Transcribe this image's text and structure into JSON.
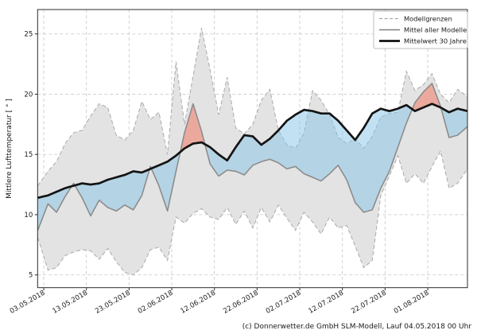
{
  "chart": {
    "y_axis_label": "Mittlere Lufttemperatur [ ° ]",
    "footer_credit": "(c) Donnerwetter.de GmbH SLM-Modell, Lauf 04.05.2018 00 Uhr",
    "legend": {
      "item1": "Modellgrenzen",
      "item2": "Mittel aller Modelle",
      "item3": "Mittelwert 30 Jahre"
    }
  },
  "chart_data": {
    "type": "line",
    "title": "",
    "xlabel": "",
    "ylabel": "Mittlere Lufttemperatur [ ° ]",
    "grid": true,
    "legend_position": "upper right",
    "x_tick_labels": [
      "03.05.2018",
      "13.05.2018",
      "23.05.2018",
      "02.06.2018",
      "12.06.2018",
      "22.06.2018",
      "02.07.2018",
      "12.07.2018",
      "22.07.2018",
      "01.08.2018"
    ],
    "x_tick_days": [
      0,
      10,
      20,
      30,
      40,
      50,
      60,
      70,
      80,
      90
    ],
    "y_ticks": [
      5,
      10,
      15,
      20,
      25
    ],
    "ylim": [
      3.95,
      27.05
    ],
    "xlim_days": [
      -1.4,
      99.3
    ],
    "days": [
      -1.4,
      1,
      3,
      5,
      7,
      9,
      11,
      13,
      15,
      17,
      19,
      21,
      23,
      25,
      27,
      29,
      31,
      33,
      35,
      37,
      39,
      41,
      43,
      45,
      47,
      49,
      51,
      53,
      55,
      57,
      59,
      61,
      63,
      65,
      67,
      69,
      71,
      73,
      75,
      77,
      79,
      81,
      83,
      85,
      87,
      89,
      91,
      93,
      95,
      97,
      99.3
    ],
    "series": [
      {
        "name": "Modellgrenzen (obere Grenze)",
        "style": "dashed-gray",
        "values": [
          12.4,
          13.6,
          14.4,
          15.9,
          16.8,
          17.0,
          18.2,
          19.2,
          18.9,
          16.6,
          16.2,
          17.0,
          19.4,
          17.9,
          18.5,
          15.0,
          22.7,
          17.5,
          21.5,
          25.5,
          22.0,
          18.3,
          21.4,
          17.2,
          16.7,
          17.5,
          19.5,
          20.4,
          17.0,
          15.8,
          15.5,
          16.8,
          20.3,
          19.5,
          18.3,
          16.4,
          15.9,
          16.3,
          15.5,
          16.5,
          18.1,
          18.4,
          18.5,
          21.9,
          20.3,
          20.8,
          21.7,
          20.0,
          19.3,
          20.4,
          19.8
        ]
      },
      {
        "name": "Modellgrenzen (untere Grenze)",
        "style": "dashed-gray",
        "values": [
          8.1,
          5.4,
          5.6,
          6.6,
          6.9,
          7.1,
          7.0,
          6.3,
          7.2,
          6.1,
          5.2,
          5.0,
          5.6,
          7.1,
          7.3,
          6.2,
          9.8,
          9.3,
          10.1,
          10.5,
          9.8,
          9.6,
          10.6,
          9.2,
          10.3,
          8.9,
          10.6,
          9.4,
          10.8,
          9.7,
          8.7,
          10.2,
          9.4,
          8.4,
          9.8,
          8.9,
          9.1,
          7.4,
          5.6,
          6.2,
          11.6,
          13.2,
          14.9,
          12.6,
          13.4,
          12.6,
          14.0,
          15.3,
          12.2,
          12.6,
          13.8
        ]
      },
      {
        "name": "Mittel aller Modelle",
        "style": "solid-gray",
        "values": [
          8.7,
          10.9,
          10.2,
          11.5,
          12.6,
          11.4,
          9.9,
          11.2,
          10.6,
          10.3,
          10.8,
          10.4,
          11.6,
          14.0,
          12.4,
          10.3,
          13.6,
          16.8,
          19.2,
          16.9,
          14.2,
          13.2,
          13.7,
          13.6,
          13.3,
          14.1,
          14.4,
          14.6,
          14.3,
          13.8,
          14.0,
          13.4,
          13.1,
          12.8,
          13.4,
          14.1,
          12.9,
          11.0,
          10.2,
          10.4,
          12.2,
          13.6,
          15.6,
          17.6,
          19.3,
          20.2,
          20.9,
          19.0,
          16.4,
          16.6,
          17.3
        ]
      },
      {
        "name": "Mittelwert 30 Jahre",
        "style": "thick-black",
        "values": [
          11.4,
          11.6,
          11.9,
          12.2,
          12.4,
          12.6,
          12.5,
          12.6,
          12.9,
          13.1,
          13.3,
          13.6,
          13.5,
          13.8,
          14.1,
          14.4,
          14.9,
          15.5,
          15.9,
          16.0,
          15.6,
          15.0,
          14.5,
          15.6,
          16.6,
          16.5,
          15.8,
          16.3,
          17.0,
          17.8,
          18.3,
          18.7,
          18.6,
          18.4,
          18.4,
          17.8,
          17.0,
          16.2,
          17.2,
          18.4,
          18.8,
          18.6,
          18.8,
          19.1,
          18.6,
          18.9,
          19.2,
          18.9,
          18.5,
          18.8,
          18.6
        ]
      }
    ],
    "fills": {
      "model_range_band": "between upper and lower Modellgrenzen",
      "warmer_than_climate": "Mittel aller Modelle above Mittelwert 30 Jahre (red)",
      "colder_than_climate": "Mittel aller Modelle below Mittelwert 30 Jahre (blue)"
    },
    "colors": {
      "band_fill": "#e3e3e3",
      "band_edge": "#a9a9a9",
      "grid": "#cdcdcd",
      "model_mean_line": "#8c8c8c",
      "climate_mean_line": "#141414",
      "warm_fill": "rgba(244,112,90,0.5)",
      "cold_fill": "rgba(134,198,232,0.5)",
      "spine": "#2b2b2b",
      "tick_text": "#1a1a1a"
    }
  }
}
